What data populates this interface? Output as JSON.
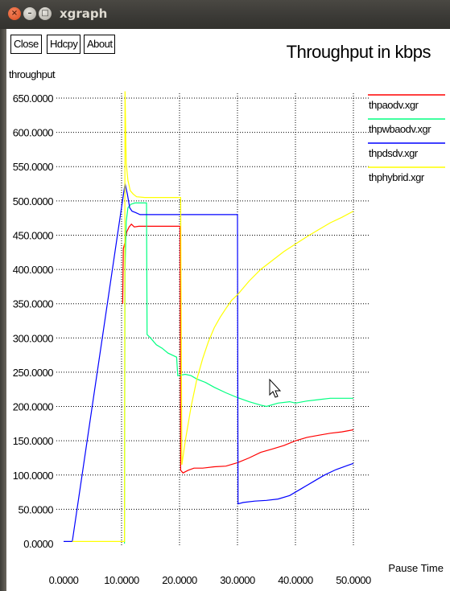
{
  "window": {
    "title": "xgraph",
    "close_glyph": "×",
    "min_glyph": "–",
    "max_glyph": "□"
  },
  "toolbar": {
    "close_label": "Close",
    "hdcpy_label": "Hdcpy",
    "about_label": "About"
  },
  "chart_data": {
    "type": "line",
    "title": "Throughput in kbps",
    "ylabel": "throughput",
    "xlabel": "Pause Time",
    "xlim": [
      0,
      50
    ],
    "ylim": [
      0,
      650
    ],
    "xticks": [
      "0.0000",
      "10.0000",
      "20.0000",
      "30.0000",
      "40.0000",
      "50.0000"
    ],
    "yticks": [
      "0.0000",
      "50.0000",
      "100.0000",
      "150.0000",
      "200.0000",
      "250.0000",
      "300.0000",
      "350.0000",
      "400.0000",
      "450.0000",
      "500.0000",
      "550.0000",
      "600.0000",
      "650.0000"
    ],
    "grid": true,
    "legend_position": "top-right",
    "series": [
      {
        "name": "thpaodv.xgr",
        "color": "#ff0000",
        "points": [
          [
            10.2,
            350
          ],
          [
            10.3,
            430
          ],
          [
            10.6,
            440
          ],
          [
            10.9,
            455
          ],
          [
            11.3,
            462
          ],
          [
            11.7,
            466
          ],
          [
            12.2,
            462
          ],
          [
            13,
            463
          ],
          [
            15,
            463
          ],
          [
            17,
            463
          ],
          [
            20.1,
            463
          ],
          [
            20.2,
            107
          ],
          [
            20.6,
            103
          ],
          [
            21.5,
            107
          ],
          [
            22.5,
            110
          ],
          [
            24,
            110
          ],
          [
            26,
            112
          ],
          [
            28,
            113
          ],
          [
            30,
            118
          ],
          [
            32,
            125
          ],
          [
            34,
            133
          ],
          [
            36,
            138
          ],
          [
            38,
            143
          ],
          [
            40,
            150
          ],
          [
            42,
            155
          ],
          [
            44,
            158
          ],
          [
            46,
            161
          ],
          [
            48,
            163
          ],
          [
            50,
            166
          ]
        ]
      },
      {
        "name": "thpwbaodv.xgr",
        "color": "#00ff80",
        "points": [
          [
            10.5,
            0
          ],
          [
            10.6,
            400
          ],
          [
            10.8,
            470
          ],
          [
            11.1,
            490
          ],
          [
            11.6,
            495
          ],
          [
            12.3,
            497
          ],
          [
            14.3,
            497
          ],
          [
            14.4,
            305
          ],
          [
            15,
            300
          ],
          [
            16,
            290
          ],
          [
            17,
            285
          ],
          [
            18,
            278
          ],
          [
            19.5,
            272
          ],
          [
            19.7,
            245
          ],
          [
            21,
            247
          ],
          [
            22,
            245
          ],
          [
            23,
            240
          ],
          [
            24.5,
            235
          ],
          [
            26,
            228
          ],
          [
            28,
            220
          ],
          [
            30,
            213
          ],
          [
            32,
            207
          ],
          [
            34,
            202
          ],
          [
            35,
            200
          ],
          [
            37,
            205
          ],
          [
            39,
            207
          ],
          [
            40,
            205
          ],
          [
            42,
            208
          ],
          [
            44,
            210
          ],
          [
            46,
            212
          ],
          [
            48,
            212
          ],
          [
            50,
            212
          ]
        ]
      },
      {
        "name": "thpdsdv.xgr",
        "color": "#0000ff",
        "points": [
          [
            0,
            3
          ],
          [
            1.5,
            3
          ],
          [
            10.6,
            525
          ],
          [
            11,
            510
          ],
          [
            11.4,
            490
          ],
          [
            11.8,
            485
          ],
          [
            12.4,
            483
          ],
          [
            13.2,
            480
          ],
          [
            15,
            480
          ],
          [
            20,
            480
          ],
          [
            25,
            480
          ],
          [
            30,
            480
          ],
          [
            30.1,
            58
          ],
          [
            31,
            60
          ],
          [
            33,
            62
          ],
          [
            35,
            63
          ],
          [
            37,
            65
          ],
          [
            39,
            70
          ],
          [
            41,
            80
          ],
          [
            43,
            90
          ],
          [
            45,
            100
          ],
          [
            47,
            108
          ],
          [
            49,
            114
          ],
          [
            50,
            117
          ]
        ]
      },
      {
        "name": "thphybrid.xgr",
        "color": "#ffff00",
        "points": [
          [
            1.5,
            3
          ],
          [
            10.5,
            3
          ],
          [
            10.6,
            660
          ],
          [
            10.8,
            555
          ],
          [
            11.1,
            530
          ],
          [
            11.5,
            515
          ],
          [
            12,
            510
          ],
          [
            12.6,
            506
          ],
          [
            14,
            505
          ],
          [
            17,
            505
          ],
          [
            20,
            505
          ],
          [
            20.2,
            505
          ],
          [
            20.4,
            115
          ],
          [
            21,
            150
          ],
          [
            22,
            200
          ],
          [
            23,
            240
          ],
          [
            24,
            270
          ],
          [
            25,
            295
          ],
          [
            26,
            315
          ],
          [
            27,
            330
          ],
          [
            28,
            343
          ],
          [
            29,
            355
          ],
          [
            30,
            363
          ],
          [
            32,
            383
          ],
          [
            34,
            400
          ],
          [
            36,
            413
          ],
          [
            38,
            426
          ],
          [
            40,
            437
          ],
          [
            42,
            448
          ],
          [
            44,
            458
          ],
          [
            46,
            468
          ],
          [
            48,
            476
          ],
          [
            50,
            485
          ]
        ]
      }
    ]
  }
}
